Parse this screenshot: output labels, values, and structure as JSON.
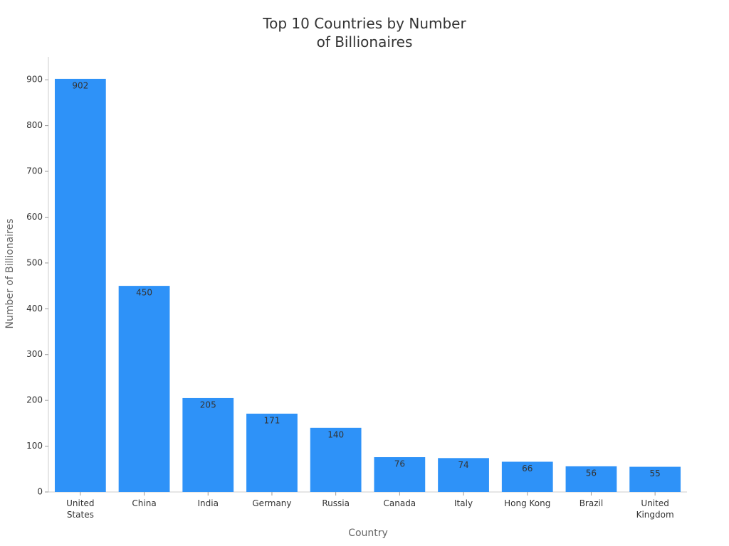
{
  "chart_data": {
    "type": "bar",
    "title": "Top 10 Countries by Number of Billionaires",
    "x_label": "Country",
    "y_label": "Number of Billionaires",
    "categories": [
      "United States",
      "China",
      "India",
      "Germany",
      "Russia",
      "Canada",
      "Italy",
      "Hong Kong",
      "Brazil",
      "United Kingdom"
    ],
    "values": [
      902,
      450,
      205,
      171,
      140,
      76,
      74,
      66,
      56,
      55
    ],
    "color": "#2e92f8",
    "ylim": [
      0,
      950
    ],
    "yticks": [
      0,
      100,
      200,
      300,
      400,
      500,
      600,
      700,
      800,
      900
    ],
    "grid": false
  }
}
